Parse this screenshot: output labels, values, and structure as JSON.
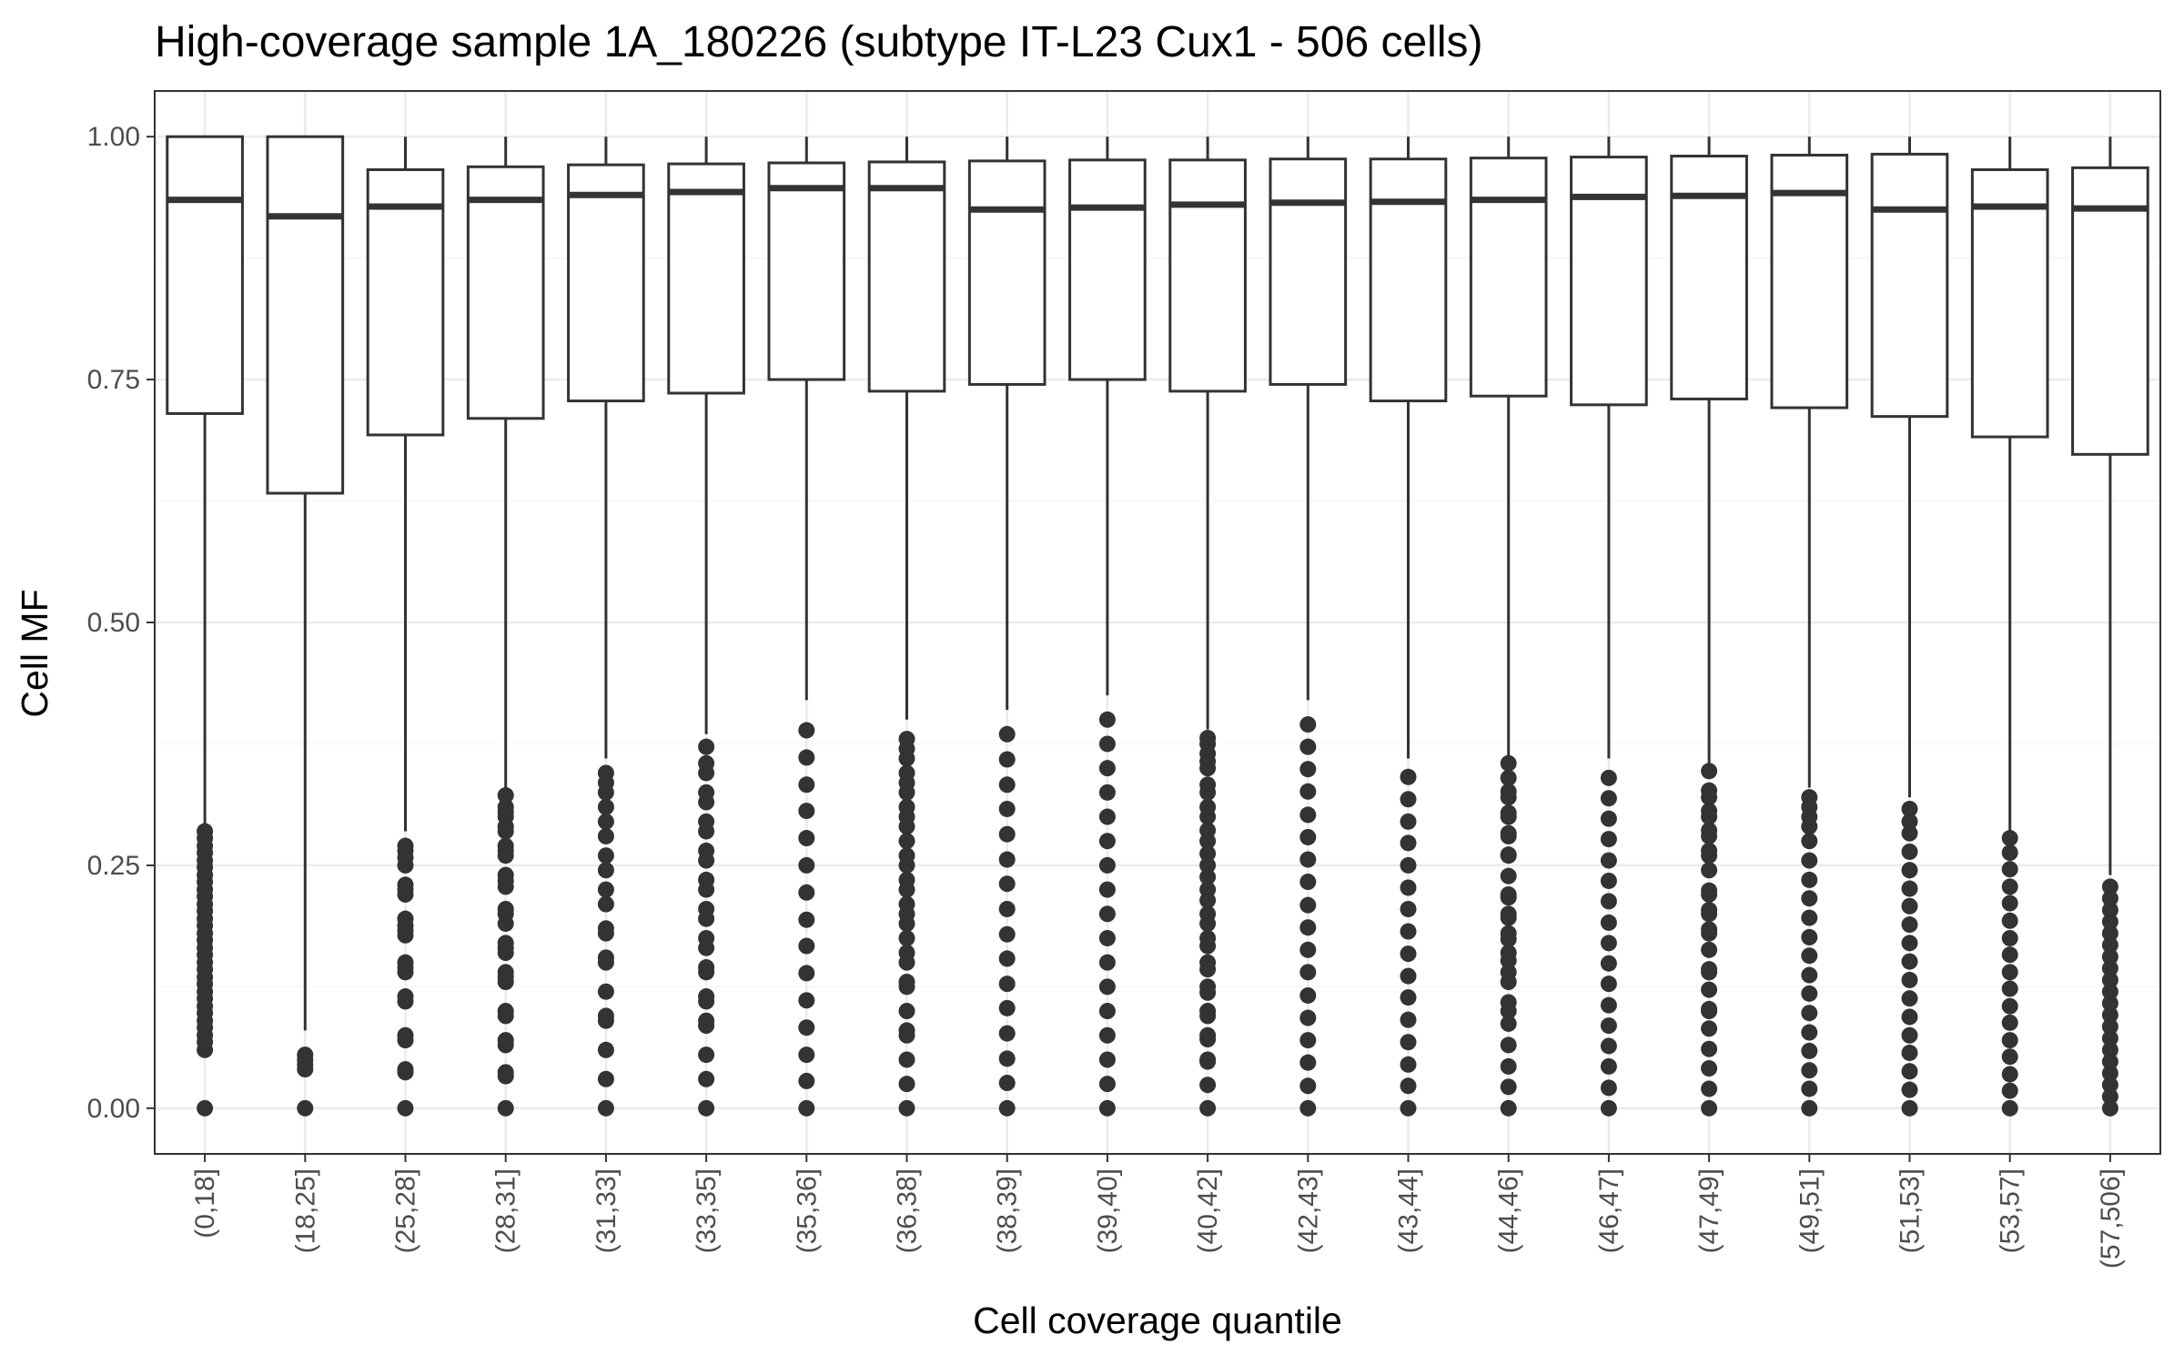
{
  "chart_data": {
    "type": "box",
    "title": "High-coverage sample 1A_180226 (subtype IT-L23 Cux1 - 506 cells)",
    "xlabel": "Cell coverage quantile",
    "ylabel": "Cell MF",
    "ylim": [
      -0.047,
      1.047
    ],
    "yticks": [
      0,
      0.25,
      0.5,
      0.75,
      1.0
    ],
    "ytick_labels": [
      "0.00",
      "0.25",
      "0.50",
      "0.75",
      "1.00"
    ],
    "grid": true,
    "colors": {
      "box_line": "#333333",
      "box_fill": "#ffffff",
      "outlier": "#333333",
      "grid_major": "#ebebeb",
      "grid_minor": "#f5f5f5",
      "panel_border": "#333333"
    },
    "categories": [
      "(0,18]",
      "(18,25]",
      "(25,28]",
      "(28,31]",
      "(31,33]",
      "(33,35]",
      "(35,36]",
      "(36,38]",
      "(38,39]",
      "(39,40]",
      "(40,42]",
      "(42,43]",
      "(43,44]",
      "(44,46]",
      "(46,47]",
      "(47,49]",
      "(49,51]",
      "(51,53]",
      "(53,57]",
      "(57,506]"
    ],
    "boxes": [
      {
        "min": 0.29,
        "q1": 0.715,
        "median": 0.935,
        "q3": 1.0,
        "max": 1.0
      },
      {
        "min": 0.08,
        "q1": 0.633,
        "median": 0.918,
        "q3": 1.0,
        "max": 1.0
      },
      {
        "min": 0.285,
        "q1": 0.693,
        "median": 0.928,
        "q3": 0.966,
        "max": 1.0
      },
      {
        "min": 0.33,
        "q1": 0.71,
        "median": 0.935,
        "q3": 0.969,
        "max": 1.0
      },
      {
        "min": 0.36,
        "q1": 0.728,
        "median": 0.94,
        "q3": 0.971,
        "max": 1.0
      },
      {
        "min": 0.385,
        "q1": 0.736,
        "median": 0.943,
        "q3": 0.972,
        "max": 1.0
      },
      {
        "min": 0.42,
        "q1": 0.75,
        "median": 0.947,
        "q3": 0.973,
        "max": 1.0
      },
      {
        "min": 0.4,
        "q1": 0.738,
        "median": 0.947,
        "q3": 0.974,
        "max": 1.0
      },
      {
        "min": 0.41,
        "q1": 0.745,
        "median": 0.925,
        "q3": 0.975,
        "max": 1.0
      },
      {
        "min": 0.425,
        "q1": 0.75,
        "median": 0.927,
        "q3": 0.976,
        "max": 1.0
      },
      {
        "min": 0.39,
        "q1": 0.738,
        "median": 0.93,
        "q3": 0.976,
        "max": 1.0
      },
      {
        "min": 0.42,
        "q1": 0.745,
        "median": 0.932,
        "q3": 0.977,
        "max": 1.0
      },
      {
        "min": 0.36,
        "q1": 0.728,
        "median": 0.933,
        "q3": 0.977,
        "max": 1.0
      },
      {
        "min": 0.36,
        "q1": 0.733,
        "median": 0.935,
        "q3": 0.978,
        "max": 1.0
      },
      {
        "min": 0.36,
        "q1": 0.724,
        "median": 0.938,
        "q3": 0.979,
        "max": 1.0
      },
      {
        "min": 0.355,
        "q1": 0.73,
        "median": 0.939,
        "q3": 0.98,
        "max": 1.0
      },
      {
        "min": 0.33,
        "q1": 0.721,
        "median": 0.942,
        "q3": 0.981,
        "max": 1.0
      },
      {
        "min": 0.32,
        "q1": 0.712,
        "median": 0.925,
        "q3": 0.982,
        "max": 1.0
      },
      {
        "min": 0.285,
        "q1": 0.691,
        "median": 0.928,
        "q3": 0.966,
        "max": 1.0
      },
      {
        "min": 0.24,
        "q1": 0.673,
        "median": 0.926,
        "q3": 0.968,
        "max": 1.0
      }
    ],
    "outliers": [
      [
        0.0,
        0.06,
        0.068,
        0.075,
        0.083,
        0.09,
        0.098,
        0.105,
        0.113,
        0.12,
        0.128,
        0.135,
        0.143,
        0.15,
        0.158,
        0.165,
        0.173,
        0.18,
        0.188,
        0.195,
        0.203,
        0.21,
        0.218,
        0.225,
        0.233,
        0.24,
        0.248,
        0.255,
        0.263,
        0.27,
        0.278,
        0.285
      ],
      [
        0.0,
        0.04,
        0.045,
        0.05,
        0.055
      ],
      [
        0.0,
        0.037,
        0.04,
        0.07,
        0.075,
        0.11,
        0.115,
        0.14,
        0.145,
        0.15,
        0.178,
        0.183,
        0.188,
        0.195,
        0.22,
        0.225,
        0.23,
        0.25,
        0.258,
        0.265,
        0.27
      ],
      [
        0.0,
        0.033,
        0.037,
        0.065,
        0.07,
        0.095,
        0.1,
        0.13,
        0.135,
        0.14,
        0.16,
        0.165,
        0.17,
        0.19,
        0.2,
        0.205,
        0.228,
        0.234,
        0.24,
        0.26,
        0.265,
        0.27,
        0.285,
        0.29,
        0.3,
        0.305,
        0.31,
        0.322
      ],
      [
        0.0,
        0.03,
        0.06,
        0.09,
        0.095,
        0.12,
        0.15,
        0.155,
        0.18,
        0.185,
        0.21,
        0.225,
        0.245,
        0.26,
        0.28,
        0.295,
        0.31,
        0.325,
        0.335,
        0.345
      ],
      [
        0.0,
        0.03,
        0.055,
        0.085,
        0.09,
        0.11,
        0.115,
        0.14,
        0.145,
        0.165,
        0.175,
        0.195,
        0.205,
        0.225,
        0.235,
        0.255,
        0.265,
        0.285,
        0.295,
        0.315,
        0.325,
        0.345,
        0.355,
        0.372
      ],
      [
        0.0,
        0.028,
        0.055,
        0.083,
        0.111,
        0.139,
        0.167,
        0.194,
        0.222,
        0.25,
        0.278,
        0.306,
        0.333,
        0.361,
        0.389
      ],
      [
        0.0,
        0.025,
        0.05,
        0.075,
        0.08,
        0.1,
        0.125,
        0.13,
        0.15,
        0.16,
        0.175,
        0.19,
        0.2,
        0.21,
        0.225,
        0.235,
        0.25,
        0.26,
        0.275,
        0.29,
        0.3,
        0.31,
        0.325,
        0.335,
        0.345,
        0.36,
        0.37,
        0.38
      ],
      [
        0.0,
        0.026,
        0.051,
        0.077,
        0.103,
        0.128,
        0.154,
        0.179,
        0.205,
        0.231,
        0.256,
        0.282,
        0.308,
        0.333,
        0.359,
        0.385
      ],
      [
        0.0,
        0.025,
        0.05,
        0.075,
        0.1,
        0.125,
        0.15,
        0.175,
        0.2,
        0.225,
        0.25,
        0.275,
        0.3,
        0.325,
        0.35,
        0.375,
        0.4
      ],
      [
        0.0,
        0.024,
        0.048,
        0.05,
        0.071,
        0.075,
        0.095,
        0.1,
        0.119,
        0.125,
        0.143,
        0.15,
        0.167,
        0.175,
        0.19,
        0.2,
        0.214,
        0.225,
        0.238,
        0.25,
        0.262,
        0.275,
        0.286,
        0.3,
        0.31,
        0.325,
        0.333,
        0.35,
        0.357,
        0.365,
        0.375,
        0.381
      ],
      [
        0.0,
        0.023,
        0.047,
        0.07,
        0.093,
        0.116,
        0.14,
        0.163,
        0.186,
        0.209,
        0.233,
        0.256,
        0.279,
        0.302,
        0.326,
        0.349,
        0.372,
        0.395
      ],
      [
        0.0,
        0.023,
        0.045,
        0.068,
        0.091,
        0.114,
        0.136,
        0.159,
        0.182,
        0.205,
        0.227,
        0.25,
        0.273,
        0.295,
        0.318,
        0.341
      ],
      [
        0.0,
        0.022,
        0.043,
        0.065,
        0.087,
        0.1,
        0.109,
        0.13,
        0.14,
        0.152,
        0.16,
        0.174,
        0.18,
        0.196,
        0.2,
        0.217,
        0.22,
        0.239,
        0.26,
        0.261,
        0.28,
        0.283,
        0.3,
        0.304,
        0.32,
        0.326,
        0.34,
        0.355
      ],
      [
        0.0,
        0.021,
        0.043,
        0.064,
        0.085,
        0.106,
        0.128,
        0.149,
        0.17,
        0.191,
        0.213,
        0.234,
        0.255,
        0.277,
        0.298,
        0.319,
        0.34
      ],
      [
        0.0,
        0.02,
        0.041,
        0.061,
        0.082,
        0.1,
        0.102,
        0.122,
        0.14,
        0.143,
        0.163,
        0.18,
        0.184,
        0.2,
        0.204,
        0.22,
        0.224,
        0.245,
        0.26,
        0.265,
        0.28,
        0.286,
        0.3,
        0.306,
        0.32,
        0.327,
        0.347
      ],
      [
        0.0,
        0.02,
        0.039,
        0.059,
        0.078,
        0.098,
        0.118,
        0.137,
        0.157,
        0.176,
        0.196,
        0.216,
        0.235,
        0.255,
        0.275,
        0.29,
        0.3,
        0.31,
        0.32
      ],
      [
        0.0,
        0.019,
        0.038,
        0.057,
        0.075,
        0.094,
        0.113,
        0.132,
        0.151,
        0.17,
        0.189,
        0.208,
        0.226,
        0.245,
        0.264,
        0.283,
        0.295,
        0.308
      ],
      [
        0.0,
        0.018,
        0.035,
        0.053,
        0.07,
        0.088,
        0.105,
        0.123,
        0.14,
        0.158,
        0.175,
        0.193,
        0.211,
        0.228,
        0.246,
        0.263,
        0.278
      ],
      [
        0.0,
        0.012,
        0.024,
        0.036,
        0.048,
        0.06,
        0.072,
        0.084,
        0.096,
        0.108,
        0.12,
        0.132,
        0.144,
        0.156,
        0.168,
        0.18,
        0.192,
        0.204,
        0.216,
        0.228
      ]
    ]
  }
}
